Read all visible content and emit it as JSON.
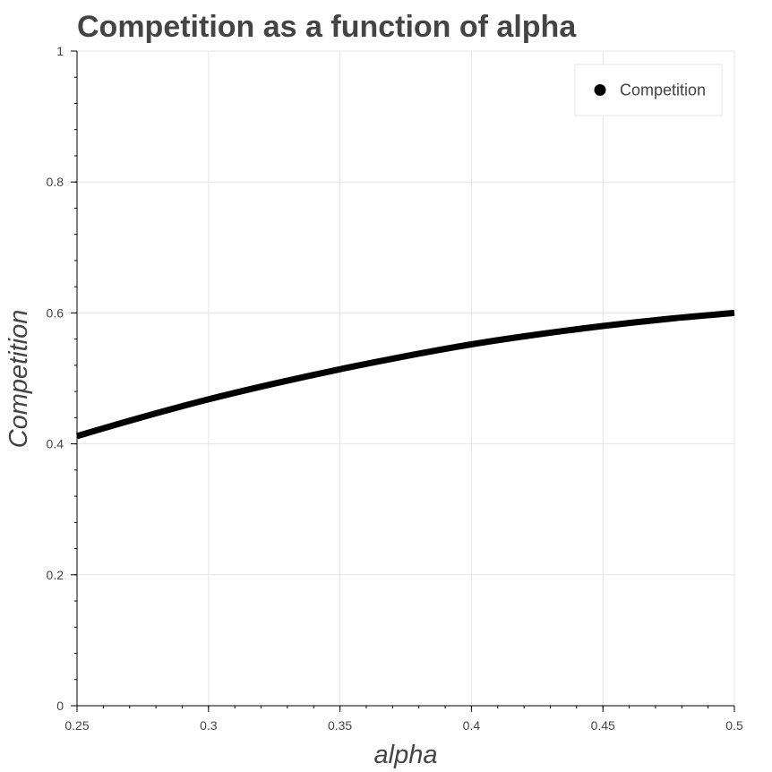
{
  "chart_data": {
    "type": "line",
    "title": "Competition as a function of alpha",
    "xlabel": "alpha",
    "ylabel": "Competition",
    "xlim": [
      0.25,
      0.5
    ],
    "ylim": [
      0,
      1
    ],
    "x_ticks": [
      {
        "value": 0.25,
        "label": "0.25"
      },
      {
        "value": 0.3,
        "label": "0.3"
      },
      {
        "value": 0.35,
        "label": "0.35"
      },
      {
        "value": 0.4,
        "label": "0.4"
      },
      {
        "value": 0.45,
        "label": "0.45"
      },
      {
        "value": 0.5,
        "label": "0.5"
      }
    ],
    "y_ticks": [
      {
        "value": 0,
        "label": "0"
      },
      {
        "value": 0.2,
        "label": "0.2"
      },
      {
        "value": 0.4,
        "label": "0.4"
      },
      {
        "value": 0.6,
        "label": "0.6"
      },
      {
        "value": 0.8,
        "label": "0.8"
      },
      {
        "value": 1,
        "label": "1"
      }
    ],
    "grid": true,
    "legend_position": "top-right",
    "series": [
      {
        "name": "Competition",
        "color": "#000000",
        "x": [
          0.25,
          0.275,
          0.3,
          0.325,
          0.35,
          0.375,
          0.4,
          0.425,
          0.45,
          0.475,
          0.5
        ],
        "y": [
          0.412,
          0.441,
          0.468,
          0.492,
          0.514,
          0.534,
          0.552,
          0.567,
          0.58,
          0.591,
          0.6
        ]
      }
    ]
  },
  "colors": {
    "text": "#444444",
    "grid": "#e5e5e5",
    "axis": "#000000",
    "legend_border": "#e5e5e5"
  }
}
